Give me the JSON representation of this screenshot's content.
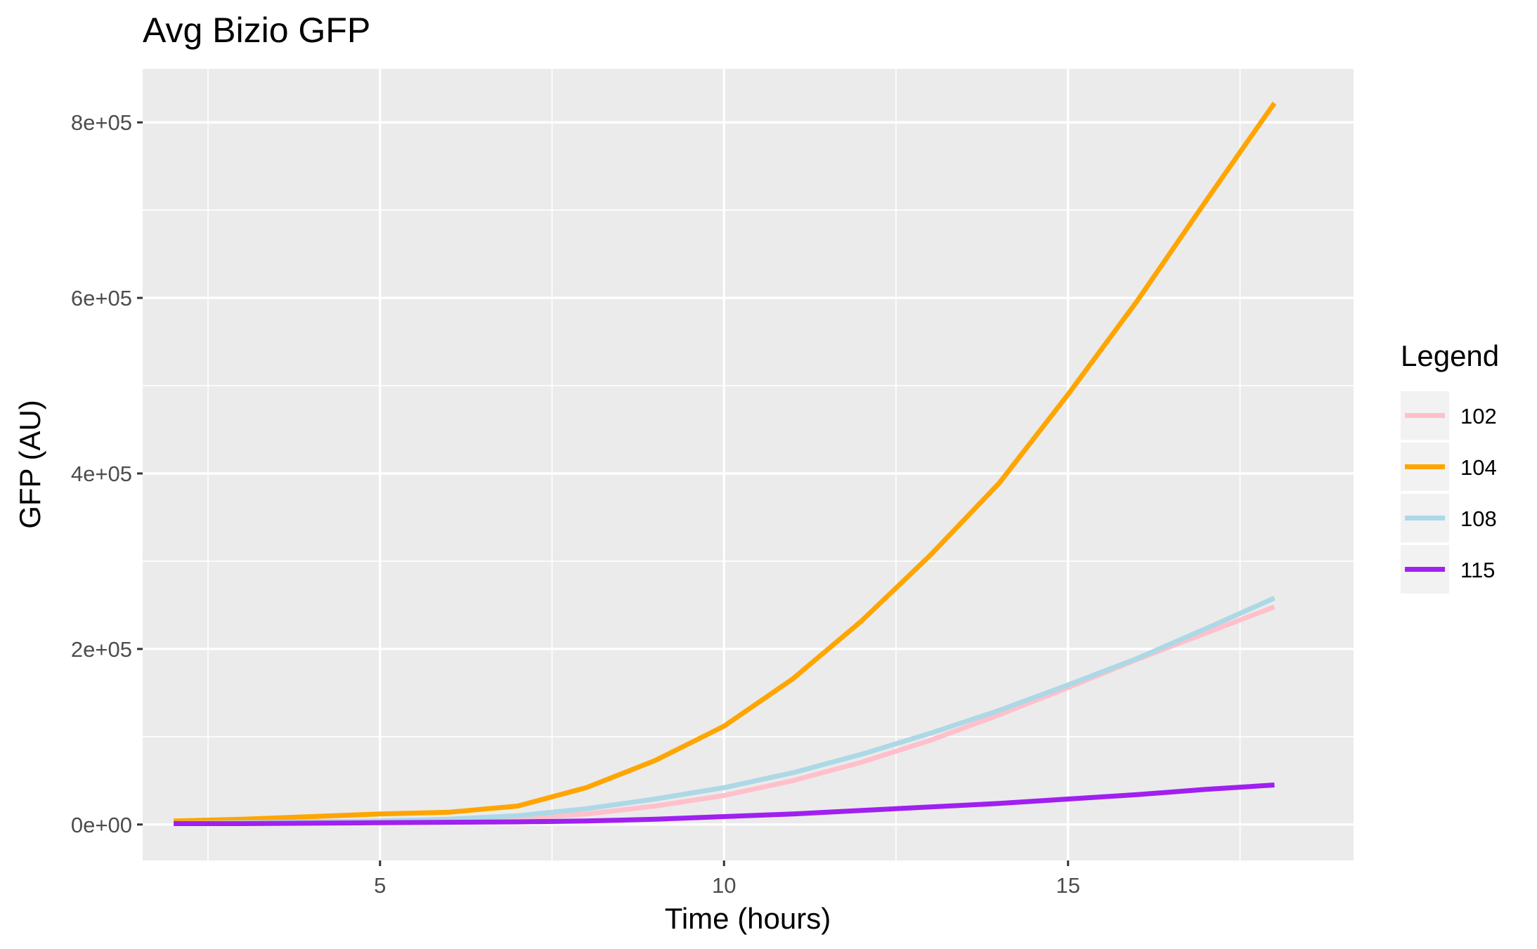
{
  "chart_data": {
    "type": "line",
    "title": "Avg Bizio GFP",
    "xlabel": "Time (hours)",
    "ylabel": "GFP (AU)",
    "xlim": [
      1.55,
      19.15
    ],
    "ylim": [
      -41000,
      861000
    ],
    "x_ticks": [
      5,
      10,
      15
    ],
    "x_tick_labels": [
      "5",
      "10",
      "15"
    ],
    "x_minor": [
      2.5,
      7.5,
      12.5,
      17.5
    ],
    "y_ticks": [
      0,
      200000,
      400000,
      600000,
      800000
    ],
    "y_tick_labels": [
      "0e+00",
      "2e+05",
      "4e+05",
      "6e+05",
      "8e+05"
    ],
    "y_minor": [
      100000,
      300000,
      500000,
      700000
    ],
    "grid": true,
    "legend": {
      "title": "Legend",
      "position": "right"
    },
    "x": [
      2,
      3,
      4,
      5,
      6,
      7,
      8,
      9,
      10,
      11,
      12,
      13,
      14,
      15,
      16,
      17,
      18
    ],
    "series": [
      {
        "name": "102",
        "color": "#FFC0CB",
        "values": [
          1000,
          2000,
          3000,
          4000,
          5000,
          7000,
          12000,
          21000,
          33000,
          50000,
          71000,
          96000,
          125000,
          156000,
          188000,
          218000,
          248000
        ]
      },
      {
        "name": "104",
        "color": "#FFA500",
        "values": [
          4000,
          6000,
          9000,
          12000,
          14000,
          21000,
          42000,
          73000,
          112000,
          166000,
          232000,
          307000,
          389000,
          490000,
          596000,
          710000,
          822000
        ]
      },
      {
        "name": "108",
        "color": "#ADD8E6",
        "values": [
          1000,
          2000,
          3000,
          4000,
          6000,
          10000,
          18000,
          29000,
          42000,
          59000,
          80000,
          104000,
          130000,
          159000,
          189000,
          223000,
          258000
        ]
      },
      {
        "name": "115",
        "color": "#A020F0",
        "values": [
          1000,
          1000,
          1500,
          2000,
          2500,
          3000,
          4000,
          6000,
          9000,
          12000,
          16000,
          20000,
          24000,
          29000,
          34000,
          40000,
          45000
        ]
      }
    ]
  }
}
